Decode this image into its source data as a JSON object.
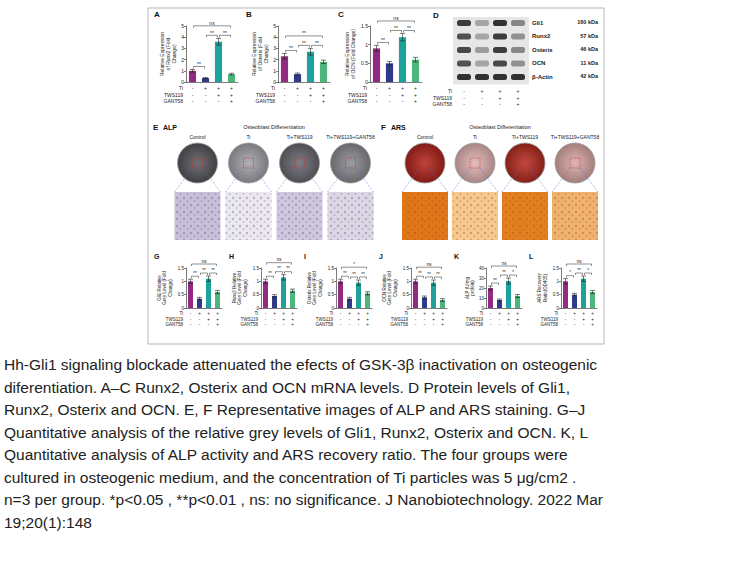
{
  "conditions": [
    {
      "name": "Ti",
      "signs": [
        "-",
        "+",
        "+",
        "+"
      ]
    },
    {
      "name": "TWS119",
      "signs": [
        "-",
        "-",
        "+",
        "+"
      ]
    },
    {
      "name": "GANT58",
      "signs": [
        "-",
        "-",
        "-",
        "+"
      ]
    }
  ],
  "chart_data": [
    {
      "panel": "A",
      "type": "bar",
      "ylabel": "Relative Expression of Runx2 (Fold Change)",
      "categories": [
        null,
        null,
        null,
        null
      ],
      "values": [
        1.0,
        0.35,
        3.6,
        0.7
      ],
      "errors": [
        0.12,
        0.05,
        0.3,
        0.08
      ],
      "colors": [
        "#912a80",
        "#2f3b8a",
        "#1ea29c",
        "#4db67c"
      ],
      "ylim": [
        0,
        5
      ],
      "yticks": [
        0,
        1,
        2,
        3,
        4,
        5
      ],
      "grid": false,
      "significance": [
        {
          "from": 0,
          "to": 1,
          "label": "**"
        },
        {
          "from": 1,
          "to": 2,
          "label": "**"
        },
        {
          "from": 2,
          "to": 3,
          "label": "**"
        },
        {
          "from": 0,
          "to": 3,
          "label": "ns"
        }
      ]
    },
    {
      "panel": "B",
      "type": "bar",
      "ylabel": "Relative Expression of Osterix (Fold Change)",
      "categories": [
        null,
        null,
        null,
        null
      ],
      "values": [
        2.3,
        0.7,
        2.7,
        1.8
      ],
      "errors": [
        0.25,
        0.1,
        0.3,
        0.15
      ],
      "colors": [
        "#912a80",
        "#2f3b8a",
        "#1ea29c",
        "#4db67c"
      ],
      "ylim": [
        0,
        5
      ],
      "yticks": [
        0,
        1,
        2,
        3,
        4,
        5
      ],
      "grid": false,
      "significance": [
        {
          "from": 0,
          "to": 1,
          "label": "**"
        },
        {
          "from": 1,
          "to": 2,
          "label": "**"
        },
        {
          "from": 2,
          "to": 3,
          "label": "**"
        },
        {
          "from": 0,
          "to": 3,
          "label": "**"
        }
      ]
    },
    {
      "panel": "C",
      "type": "bar",
      "ylabel": "Relative Expression of OCN (Fold Change)",
      "categories": [
        null,
        null,
        null,
        null
      ],
      "values": [
        0.9,
        0.5,
        1.2,
        0.6
      ],
      "errors": [
        0.08,
        0.05,
        0.1,
        0.06
      ],
      "colors": [
        "#912a80",
        "#2f3b8a",
        "#1ea29c",
        "#4db67c"
      ],
      "ylim": [
        0,
        1.5
      ],
      "yticks": [
        0,
        0.5,
        1,
        1.5
      ],
      "grid": false,
      "significance": [
        {
          "from": 0,
          "to": 1,
          "label": "**"
        },
        {
          "from": 1,
          "to": 2,
          "label": "**"
        },
        {
          "from": 2,
          "to": 3,
          "label": "**"
        },
        {
          "from": 0,
          "to": 3,
          "label": "ns"
        }
      ]
    },
    {
      "panel": "G",
      "type": "bar",
      "ylabel": "Gli1 Relative Grey Level (Fold Change)",
      "categories": [
        null,
        null,
        null,
        null
      ],
      "values": [
        1.0,
        0.35,
        1.1,
        0.6
      ],
      "errors": [
        0.08,
        0.05,
        0.1,
        0.06
      ],
      "colors": [
        "#912a80",
        "#2f3b8a",
        "#1ea29c",
        "#4db67c"
      ],
      "ylim": [
        0,
        1.5
      ],
      "yticks": [
        0,
        0.5,
        1,
        1.5
      ],
      "grid": false,
      "significance": [
        {
          "from": 0,
          "to": 1,
          "label": "**"
        },
        {
          "from": 1,
          "to": 2,
          "label": "**"
        },
        {
          "from": 2,
          "to": 3,
          "label": "**"
        },
        {
          "from": 0,
          "to": 3,
          "label": "ns"
        }
      ]
    },
    {
      "panel": "H",
      "type": "bar",
      "ylabel": "Runx2 Relative Grey Level (Fold Change)",
      "categories": [
        null,
        null,
        null,
        null
      ],
      "values": [
        1.0,
        0.45,
        1.15,
        0.65
      ],
      "errors": [
        0.08,
        0.05,
        0.1,
        0.06
      ],
      "colors": [
        "#912a80",
        "#2f3b8a",
        "#1ea29c",
        "#4db67c"
      ],
      "ylim": [
        0,
        1.5
      ],
      "yticks": [
        0,
        0.5,
        1,
        1.5
      ],
      "grid": false,
      "significance": [
        {
          "from": 0,
          "to": 1,
          "label": "**"
        },
        {
          "from": 1,
          "to": 2,
          "label": "**"
        },
        {
          "from": 2,
          "to": 3,
          "label": "**"
        },
        {
          "from": 0,
          "to": 3,
          "label": "ns"
        }
      ]
    },
    {
      "panel": "I",
      "type": "bar",
      "ylabel": "Osterix Relative Grey Level (Fold Change)",
      "categories": [
        null,
        null,
        null,
        null
      ],
      "values": [
        1.0,
        0.35,
        0.95,
        0.55
      ],
      "errors": [
        0.08,
        0.05,
        0.1,
        0.06
      ],
      "colors": [
        "#912a80",
        "#2f3b8a",
        "#1ea29c",
        "#4db67c"
      ],
      "ylim": [
        0,
        1.5
      ],
      "yticks": [
        0,
        0.5,
        1,
        1.5
      ],
      "grid": false,
      "significance": [
        {
          "from": 0,
          "to": 1,
          "label": "**"
        },
        {
          "from": 1,
          "to": 2,
          "label": "**"
        },
        {
          "from": 2,
          "to": 3,
          "label": "**"
        },
        {
          "from": 0,
          "to": 3,
          "label": "*"
        }
      ]
    },
    {
      "panel": "J",
      "type": "bar",
      "ylabel": "OCN Relative Grey Level (Fold Change)",
      "categories": [
        null,
        null,
        null,
        null
      ],
      "values": [
        1.0,
        0.4,
        0.95,
        0.3
      ],
      "errors": [
        0.08,
        0.05,
        0.1,
        0.05
      ],
      "colors": [
        "#912a80",
        "#2f3b8a",
        "#1ea29c",
        "#4db67c"
      ],
      "ylim": [
        0,
        1.5
      ],
      "yticks": [
        0,
        0.5,
        1,
        1.5
      ],
      "grid": false,
      "significance": [
        {
          "from": 0,
          "to": 1,
          "label": "**"
        },
        {
          "from": 1,
          "to": 2,
          "label": "**"
        },
        {
          "from": 2,
          "to": 3,
          "label": "**"
        },
        {
          "from": 0,
          "to": 3,
          "label": "ns"
        }
      ]
    },
    {
      "panel": "K",
      "type": "bar",
      "ylabel": "ALP (U/mg protein)",
      "categories": [
        null,
        null,
        null,
        null
      ],
      "values": [
        20,
        8,
        27,
        12
      ],
      "errors": [
        2,
        1,
        3,
        1.5
      ],
      "colors": [
        "#912a80",
        "#2f3b8a",
        "#1ea29c",
        "#4db67c"
      ],
      "ylim": [
        0,
        40
      ],
      "yticks": [
        0,
        10,
        20,
        30,
        40
      ],
      "grid": false,
      "significance": [
        {
          "from": 0,
          "to": 1,
          "label": "**"
        },
        {
          "from": 1,
          "to": 2,
          "label": "**"
        },
        {
          "from": 2,
          "to": 3,
          "label": "*"
        },
        {
          "from": 0,
          "to": 3,
          "label": "ns"
        }
      ]
    },
    {
      "panel": "L",
      "type": "bar",
      "ylabel": "ARS Recovery Ratio(OD405)",
      "categories": [
        null,
        null,
        null,
        null
      ],
      "values": [
        1.0,
        0.5,
        1.1,
        0.6
      ],
      "errors": [
        0.1,
        0.05,
        0.1,
        0.06
      ],
      "colors": [
        "#912a80",
        "#2f3b8a",
        "#1ea29c",
        "#4db67c"
      ],
      "ylim": [
        0,
        1.5
      ],
      "yticks": [
        0,
        0.5,
        1,
        1.5
      ],
      "grid": false,
      "significance": [
        {
          "from": 0,
          "to": 1,
          "label": "*"
        },
        {
          "from": 1,
          "to": 2,
          "label": "**"
        },
        {
          "from": 2,
          "to": 3,
          "label": "*"
        },
        {
          "from": 0,
          "to": 3,
          "label": "ns"
        }
      ]
    }
  ],
  "blot": {
    "panel": "D",
    "bands": [
      {
        "label": "Gli1",
        "size": "160 kDa",
        "intensity": [
          0.8,
          0.3,
          0.85,
          0.45
        ]
      },
      {
        "label": "Runx2",
        "size": "57 kDa",
        "intensity": [
          0.7,
          0.3,
          0.8,
          0.4
        ]
      },
      {
        "label": "Osterix",
        "size": "46 kDa",
        "intensity": [
          0.75,
          0.35,
          0.8,
          0.45
        ]
      },
      {
        "label": "OCN",
        "size": "11 kDa",
        "intensity": [
          0.7,
          0.3,
          0.75,
          0.4
        ]
      },
      {
        "label": "β-Actin",
        "size": "42 kDa",
        "intensity": [
          0.85,
          0.85,
          0.85,
          0.85
        ]
      }
    ]
  },
  "staining": [
    {
      "panel": "E",
      "title": "ALP",
      "header": "Osteoblast Differentiation",
      "groups": [
        "Control",
        "Ti",
        "Ti+TWS119",
        "Ti+TWS119+GANT58"
      ],
      "colors": [
        "#55555c",
        "#a3a3a8",
        "#66666d",
        "#8a8a90"
      ]
    },
    {
      "panel": "F",
      "title": "ARS",
      "header": "Osteoblast Differentiation",
      "groups": [
        "Control",
        "Ti",
        "Ti+TWS119",
        "Ti+TWS119+GANT58"
      ],
      "colors": [
        "#b0231b",
        "#e0b3b0",
        "#b32a20",
        "#d9a8a4"
      ]
    }
  ],
  "caption": [
    "Hh-Gli1 signaling blockade attenuated the efects of GSK-3β inactivation on osteogenic",
    "diferentiation. A–C Runx2, Osterix and OCN mRNA levels. D Protein levels of Gli1,",
    "Runx2, Osterix and OCN. E, F Representative images of ALP and ARS staining. G–J",
    "Quantitative analysis of the relative grey levels of Gli1, Runx2, Osterix and OCN. K, L",
    "Quantitative analysis of ALP activity and ARS recovery ratio. The four groups were",
    "cultured in osteogenic medium, and the concentration of Ti particles was 5 μg/cm2 .",
    "n=3 per group. *p<0.05 , **p<0.01 , ns: no significance. J Nanobiotechnology. 2022 Mar",
    "19;20(1):148"
  ]
}
